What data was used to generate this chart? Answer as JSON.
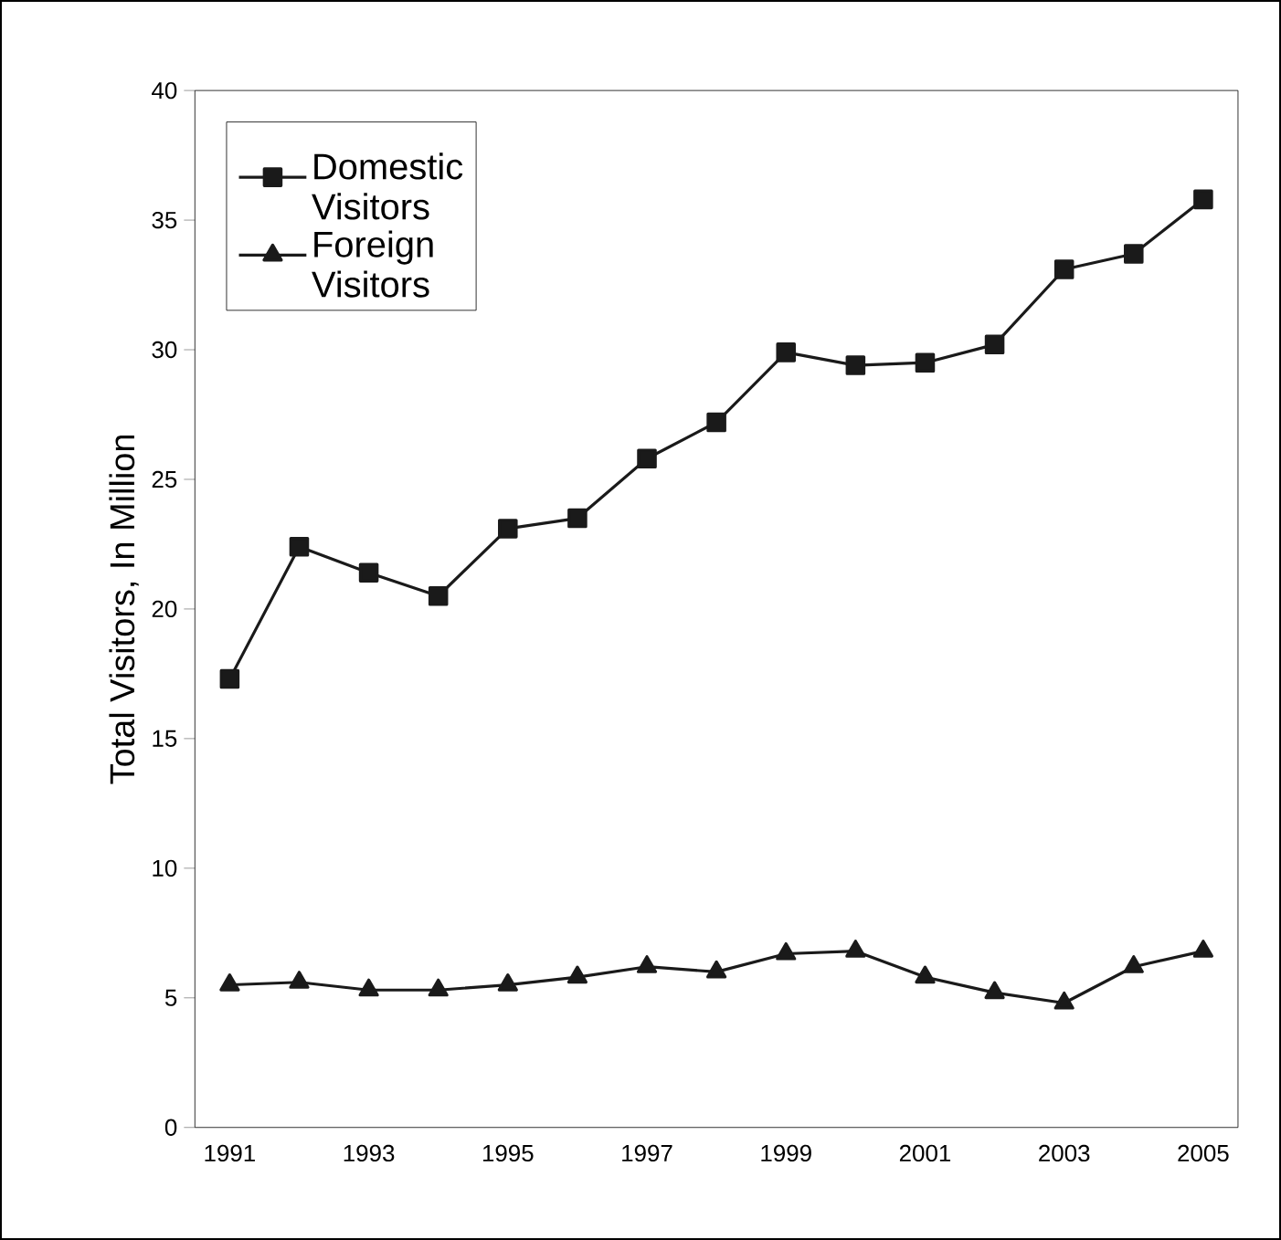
{
  "chart_data": {
    "type": "line",
    "ylabel": "Total Visitors, In Million",
    "categories": [
      "1991",
      null,
      "1993",
      null,
      "1995",
      null,
      "1997",
      null,
      "1999",
      null,
      "2001",
      null,
      "2003",
      null,
      "2005"
    ],
    "ylim": [
      0,
      40
    ],
    "yticks": [
      0,
      5,
      10,
      15,
      20,
      25,
      30,
      35,
      40
    ],
    "grid": false,
    "legend": "top left",
    "line_style": "solid",
    "series": [
      {
        "name": "Domestic Visitors",
        "color": "#1a1a1a",
        "marker": "square",
        "values": [
          17.3,
          22.4,
          21.4,
          20.5,
          23.1,
          23.5,
          25.8,
          27.2,
          29.9,
          29.4,
          29.5,
          30.2,
          33.1,
          33.7,
          35.8
        ]
      },
      {
        "name": "Foreign Visitors",
        "color": "#1a1a1a",
        "marker": "triangle",
        "values": [
          5.5,
          5.6,
          5.3,
          5.3,
          5.5,
          5.8,
          6.2,
          6.0,
          6.7,
          6.8,
          5.8,
          5.2,
          4.8,
          6.2,
          6.8
        ]
      }
    ]
  }
}
